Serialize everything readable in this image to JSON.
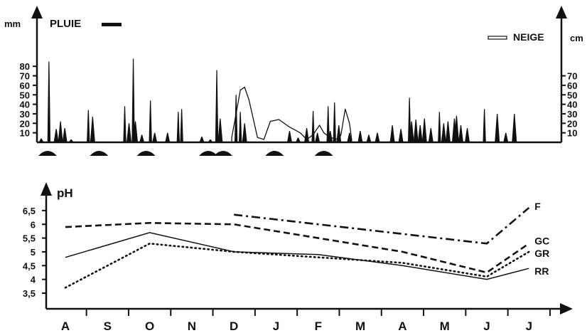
{
  "chart_data": [
    {
      "type": "area",
      "left_axis_label": "mm",
      "right_axis_label": "cm",
      "left_ticks": [
        "10",
        "20",
        "30",
        "40",
        "50",
        "60",
        "70",
        "80"
      ],
      "right_ticks": [
        "10",
        "20",
        "30",
        "40",
        "50",
        "60",
        "70"
      ],
      "ylim": [
        0,
        90
      ],
      "x_range": [
        0,
        12
      ],
      "series": [
        {
          "name": "PLUIE",
          "style": "filled-black",
          "points": [
            [
              0.1,
              4
            ],
            [
              0.28,
              85
            ],
            [
              0.45,
              14
            ],
            [
              0.55,
              22
            ],
            [
              0.65,
              15
            ],
            [
              0.8,
              3
            ],
            [
              1.2,
              34
            ],
            [
              1.3,
              27
            ],
            [
              2.05,
              38
            ],
            [
              2.15,
              20
            ],
            [
              2.25,
              88
            ],
            [
              2.3,
              22
            ],
            [
              2.45,
              8
            ],
            [
              2.65,
              44
            ],
            [
              2.75,
              10
            ],
            [
              3.05,
              10
            ],
            [
              3.3,
              32
            ],
            [
              3.38,
              35
            ],
            [
              3.85,
              6
            ],
            [
              4.05,
              3
            ],
            [
              4.2,
              76
            ],
            [
              4.28,
              25
            ],
            [
              4.65,
              50
            ],
            [
              4.75,
              32
            ],
            [
              4.85,
              20
            ],
            [
              5.9,
              12
            ],
            [
              6.1,
              5
            ],
            [
              6.3,
              15
            ],
            [
              6.45,
              33
            ],
            [
              6.55,
              10
            ],
            [
              6.8,
              38
            ],
            [
              6.85,
              12
            ],
            [
              6.95,
              42
            ],
            [
              7.05,
              18
            ],
            [
              7.3,
              10
            ],
            [
              7.55,
              12
            ],
            [
              7.75,
              8
            ],
            [
              7.95,
              10
            ],
            [
              8.3,
              18
            ],
            [
              8.5,
              14
            ],
            [
              8.7,
              47
            ],
            [
              8.75,
              22
            ],
            [
              8.85,
              24
            ],
            [
              8.95,
              18
            ],
            [
              9.05,
              25
            ],
            [
              9.2,
              15
            ],
            [
              9.4,
              32
            ],
            [
              9.5,
              20
            ],
            [
              9.6,
              22
            ],
            [
              9.75,
              25
            ],
            [
              9.8,
              28
            ],
            [
              9.9,
              18
            ],
            [
              10.05,
              15
            ],
            [
              10.45,
              35
            ],
            [
              10.75,
              30
            ],
            [
              10.95,
              10
            ],
            [
              11.15,
              30
            ]
          ]
        },
        {
          "name": "NEIGE",
          "style": "outline",
          "points": [
            [
              4.55,
              5
            ],
            [
              4.65,
              30
            ],
            [
              4.75,
              55
            ],
            [
              4.85,
              58
            ],
            [
              4.95,
              45
            ],
            [
              5.05,
              25
            ],
            [
              5.15,
              5
            ],
            [
              5.3,
              3
            ],
            [
              5.45,
              22
            ],
            [
              5.65,
              24
            ],
            [
              5.9,
              16
            ],
            [
              6.15,
              10
            ],
            [
              6.3,
              3
            ],
            [
              6.45,
              8
            ],
            [
              6.6,
              18
            ],
            [
              6.7,
              10
            ],
            [
              6.85,
              5
            ],
            [
              7.05,
              3
            ],
            [
              7.1,
              8
            ],
            [
              7.2,
              35
            ],
            [
              7.3,
              20
            ],
            [
              7.35,
              3
            ]
          ]
        }
      ],
      "markers_x": [
        0.25,
        1.45,
        2.55,
        4.0,
        4.35,
        5.55,
        6.7
      ]
    },
    {
      "type": "line",
      "ylabel": "pH",
      "y_ticks": [
        "3,5",
        "4",
        "4,5",
        "5",
        "5,5",
        "6",
        "6,5"
      ],
      "ylim": [
        3.3,
        6.8
      ],
      "categories": [
        "A",
        "S",
        "O",
        "N",
        "D",
        "J",
        "F",
        "M",
        "A",
        "M",
        "J",
        "J"
      ],
      "series": [
        {
          "name": "F",
          "style": "dashdot",
          "points": [
            [
              4,
              6.35
            ],
            [
              10,
              5.3
            ],
            [
              11,
              6.6
            ]
          ]
        },
        {
          "name": "GC",
          "style": "dashed",
          "points": [
            [
              0,
              5.9
            ],
            [
              2,
              6.05
            ],
            [
              4,
              6.0
            ],
            [
              8,
              5.0
            ],
            [
              10,
              4.25
            ],
            [
              11,
              5.3
            ]
          ]
        },
        {
          "name": "GR",
          "style": "dotted",
          "points": [
            [
              0,
              3.7
            ],
            [
              2,
              5.3
            ],
            [
              4,
              5.0
            ],
            [
              8,
              4.6
            ],
            [
              10,
              4.1
            ],
            [
              11,
              5.0
            ]
          ]
        },
        {
          "name": "RR",
          "style": "solid",
          "points": [
            [
              0,
              4.8
            ],
            [
              2,
              5.7
            ],
            [
              4,
              5.0
            ],
            [
              6,
              4.9
            ],
            [
              8,
              4.5
            ],
            [
              10,
              4.0
            ],
            [
              11,
              4.4
            ]
          ]
        }
      ]
    }
  ],
  "legend": {
    "rain_label": "PLUIE",
    "snow_label": "NEIGE"
  }
}
